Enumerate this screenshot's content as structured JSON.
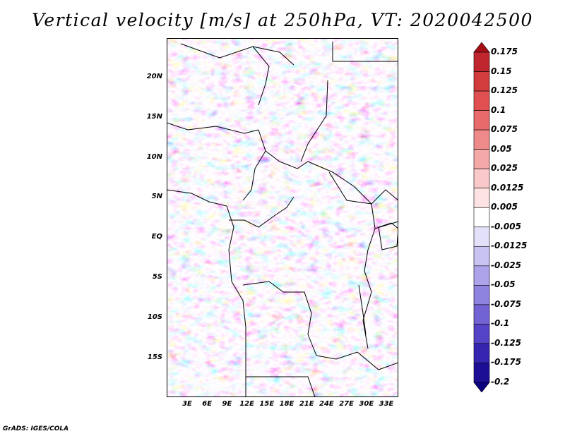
{
  "title": "Vertical velocity [m/s] at 250hPa, VT: 2020042500",
  "footer": "GrADS: IGES/COLA",
  "map": {
    "variable": "Vertical velocity",
    "units": "m/s",
    "level": "250hPa",
    "valid_time": "2020042500",
    "lat_labels": [
      "20N",
      "15N",
      "10N",
      "5N",
      "EQ",
      "5S",
      "10S",
      "15S"
    ],
    "lon_labels": [
      "3E",
      "6E",
      "9E",
      "12E",
      "15E",
      "18E",
      "21E",
      "24E",
      "27E",
      "30E",
      "33E"
    ]
  },
  "colorbar": {
    "levels": [
      "0.175",
      "0.15",
      "0.125",
      "0.1",
      "0.075",
      "0.05",
      "0.025",
      "0.0125",
      "0.005",
      "-0.005",
      "-0.0125",
      "-0.025",
      "-0.05",
      "-0.075",
      "-0.1",
      "-0.125",
      "-0.175",
      "-0.2"
    ],
    "colors": [
      "#a50f15",
      "#c0262d",
      "#d23c3c",
      "#e05050",
      "#e86a6a",
      "#ef8a8a",
      "#f5a8a8",
      "#f9c8c8",
      "#fde3e3",
      "#ffffff",
      "#e3e0fa",
      "#c9c3f3",
      "#aca3ea",
      "#8f83e0",
      "#7263d4",
      "#5443c6",
      "#3525b0",
      "#1c0f96",
      "#0b0080"
    ]
  }
}
